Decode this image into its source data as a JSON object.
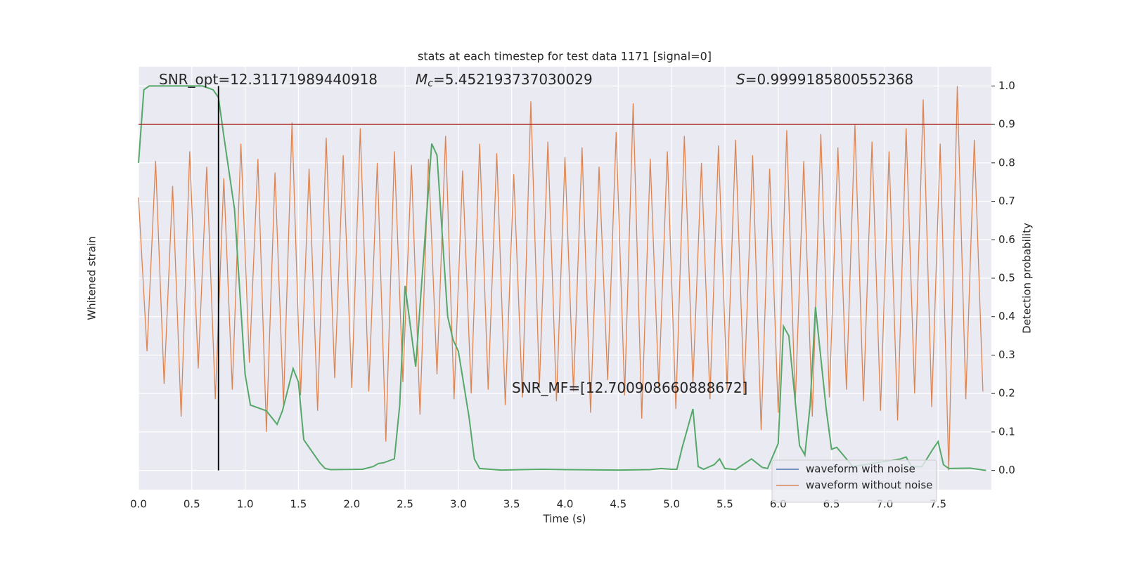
{
  "chart_data": {
    "type": "line",
    "title": "stats at each timestep for test data 1171 [signal=0]",
    "xlabel": "Time (s)",
    "ylabel": "Whitened strain",
    "y2label": "Detection probability",
    "xlim": [
      0,
      8
    ],
    "xticks": [
      {
        "value": 0,
        "label": "0.0"
      },
      0.5,
      {
        "value": 1,
        "label": "1.0"
      },
      1.5,
      {
        "value": 2,
        "label": "2.0"
      },
      2.5,
      {
        "value": 3,
        "label": "3.0"
      },
      3.5,
      {
        "value": 4,
        "label": "4.0"
      },
      4.5,
      {
        "value": 5,
        "label": "5.0"
      },
      5.5,
      {
        "value": 6,
        "label": "6.0"
      },
      6.5,
      {
        "value": 7,
        "label": "7.0"
      },
      7.5
    ],
    "ylim": [
      -1.1,
      1.1
    ],
    "y2lim": [
      -0.05,
      1.05
    ],
    "y2ticks": [
      {
        "value": 0,
        "label": "0.0"
      },
      0.1,
      0.2,
      0.3,
      0.4,
      0.5,
      0.6,
      0.7,
      0.8,
      0.9,
      {
        "value": 1,
        "label": "1.0"
      }
    ],
    "grid": true,
    "x": [
      0,
      0.08,
      0.16,
      0.24,
      0.32,
      0.4,
      0.48,
      0.56,
      0.64,
      0.72,
      0.8,
      0.88,
      0.96,
      1.04,
      1.12,
      1.2,
      1.28,
      1.36,
      1.44,
      1.52,
      1.6,
      1.68,
      1.76,
      1.84,
      1.92,
      2,
      2.08,
      2.16,
      2.24,
      2.32,
      2.4,
      2.48,
      2.56,
      2.64,
      2.72,
      2.8,
      2.88,
      2.96,
      3.04,
      3.12,
      3.2,
      3.28,
      3.36,
      3.44,
      3.52,
      3.6,
      3.68,
      3.76,
      3.84,
      3.92,
      4,
      4.08,
      4.16,
      4.24,
      4.32,
      4.4,
      4.48,
      4.56,
      4.64,
      4.72,
      4.8,
      4.88,
      4.96,
      5.04,
      5.12,
      5.2,
      5.28,
      5.36,
      5.44,
      5.52,
      5.6,
      5.68,
      5.76,
      5.84,
      5.92,
      6,
      6.08,
      6.16,
      6.24,
      6.32,
      6.4,
      6.48,
      6.56,
      6.64,
      6.72,
      6.8,
      6.88,
      6.96,
      7.04,
      7.12,
      7.2,
      7.28,
      7.36,
      7.44,
      7.52,
      7.6,
      7.68,
      7.76,
      7.84,
      7.92
    ],
    "series": [
      {
        "name": "waveform with noise",
        "color": "#4c72b0"
      },
      {
        "name": "waveform without noise",
        "color": "#dd8452",
        "values": [
          0.42,
          -0.38,
          0.61,
          -0.55,
          0.48,
          -0.72,
          0.66,
          -0.47,
          0.58,
          -0.63,
          0.52,
          -0.58,
          0.7,
          -0.44,
          0.62,
          -0.8,
          0.55,
          -0.66,
          0.81,
          -0.61,
          0.57,
          -0.69,
          0.73,
          -0.52,
          0.64,
          -0.57,
          0.78,
          -0.59,
          0.6,
          -0.85,
          0.66,
          -0.54,
          0.59,
          -0.71,
          0.62,
          -0.5,
          0.74,
          -0.63,
          0.56,
          -0.6,
          0.7,
          -0.58,
          0.65,
          -0.66,
          0.54,
          -0.62,
          0.92,
          -0.57,
          0.71,
          -0.64,
          0.63,
          -0.59,
          0.68,
          -0.7,
          0.58,
          -0.53,
          0.76,
          -0.61,
          0.91,
          -0.73,
          0.62,
          -0.57,
          0.66,
          -0.68,
          0.74,
          -0.55,
          0.6,
          -0.63,
          0.69,
          -0.58,
          0.72,
          -0.6,
          0.64,
          -0.79,
          0.57,
          -0.7,
          0.77,
          -0.66,
          0.61,
          -0.72,
          0.75,
          -0.62,
          0.68,
          -0.58,
          0.8,
          -0.64,
          0.71,
          -0.69,
          0.66,
          -0.74,
          0.78,
          -0.6,
          0.93,
          -0.67,
          0.7,
          -1.0,
          1.0,
          -0.63,
          0.72,
          -0.59
        ]
      },
      {
        "color": "#55a868",
        "axis": "y2",
        "x": [
          0,
          0.05,
          0.1,
          0.2,
          0.3,
          0.4,
          0.5,
          0.6,
          0.7,
          0.75,
          0.8,
          0.9,
          1.0,
          1.05,
          1.2,
          1.3,
          1.35,
          1.45,
          1.5,
          1.55,
          1.7,
          1.75,
          1.8,
          2.1,
          2.2,
          2.25,
          2.3,
          2.4,
          2.45,
          2.5,
          2.6,
          2.75,
          2.8,
          2.9,
          2.95,
          3.0,
          3.1,
          3.15,
          3.2,
          3.4,
          3.6,
          3.8,
          4.0,
          4.5,
          4.8,
          4.9,
          5.0,
          5.05,
          5.1,
          5.2,
          5.25,
          5.3,
          5.4,
          5.45,
          5.5,
          5.6,
          5.75,
          5.85,
          5.9,
          6.0,
          6.05,
          6.1,
          6.2,
          6.25,
          6.3,
          6.35,
          6.45,
          6.5,
          6.55,
          6.7,
          7.15,
          7.2,
          7.25,
          7.35,
          7.45,
          7.5,
          7.55,
          7.6,
          7.8,
          7.95
        ],
        "values": [
          0.8,
          0.99,
          1.0,
          1.0,
          1.0,
          1.0,
          1.0,
          1.0,
          0.99,
          0.97,
          0.87,
          0.68,
          0.25,
          0.17,
          0.155,
          0.12,
          0.155,
          0.265,
          0.23,
          0.08,
          0.02,
          0.005,
          0.002,
          0.003,
          0.01,
          0.018,
          0.02,
          0.03,
          0.17,
          0.48,
          0.27,
          0.85,
          0.82,
          0.4,
          0.34,
          0.31,
          0.14,
          0.03,
          0.005,
          0.001,
          0.002,
          0.003,
          0.002,
          0.001,
          0.002,
          0.005,
          0.003,
          0.003,
          0.06,
          0.16,
          0.01,
          0.003,
          0.015,
          0.03,
          0.005,
          0.002,
          0.03,
          0.008,
          0.005,
          0.07,
          0.375,
          0.35,
          0.065,
          0.04,
          0.17,
          0.425,
          0.16,
          0.055,
          0.06,
          0.01,
          0.03,
          0.035,
          0.01,
          0.01,
          0.055,
          0.075,
          0.015,
          0.005,
          0.006,
          0
        ]
      }
    ],
    "hline": {
      "value": 0.9,
      "axis": "y2",
      "color": "#b03a2e"
    },
    "vline": {
      "x": 0.75,
      "y2min": 0,
      "y2max": 1.0,
      "color": "#000000"
    },
    "annotations": [
      {
        "text": "SNR_opt=12.31171989440918"
      },
      {
        "symbol": "M",
        "subscript": "c",
        "text": "=5.452193737030029"
      },
      {
        "symbol": "S",
        "text": "=0.9999185800552368"
      },
      {
        "text": "SNR_MF=[12.700908660888672]"
      }
    ]
  }
}
